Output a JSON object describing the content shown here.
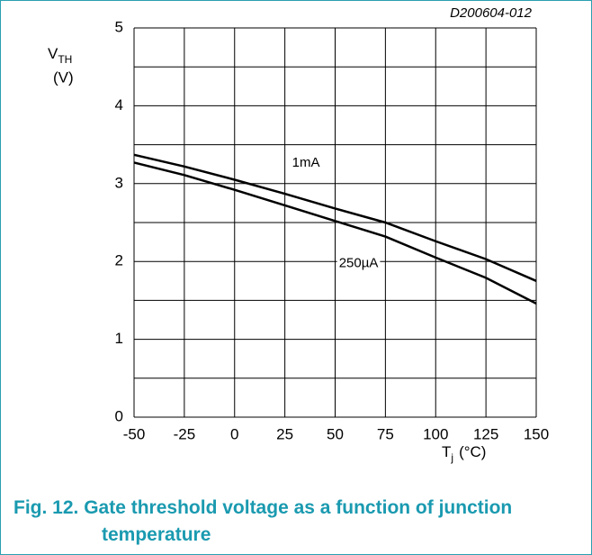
{
  "chart_data": {
    "type": "line",
    "note": "D200604-012",
    "y_label": {
      "main": "V",
      "sub": "TH",
      "unit": "(V)"
    },
    "x_label": {
      "main": "T",
      "sub": "j",
      "unit": "(°C)"
    },
    "x": [
      -50,
      -25,
      0,
      25,
      50,
      75,
      100,
      125,
      150
    ],
    "series": [
      {
        "name": "1mA",
        "color": "#000000",
        "values": [
          3.37,
          3.22,
          3.05,
          2.87,
          2.68,
          2.5,
          2.26,
          2.03,
          1.75
        ]
      },
      {
        "name": "250µA",
        "color": "#000000",
        "values": [
          3.27,
          3.11,
          2.92,
          2.72,
          2.52,
          2.32,
          2.05,
          1.79,
          1.46
        ]
      }
    ],
    "xlim": [
      -50,
      150
    ],
    "xticks": [
      -50,
      -25,
      0,
      25,
      50,
      75,
      100,
      125,
      150
    ],
    "ylim": [
      0,
      5
    ],
    "yticks": [
      0,
      1,
      2,
      3,
      4,
      5
    ],
    "y_minor_grid": [
      0.5,
      1.5,
      2.5,
      3.5,
      4.5
    ],
    "grid": true,
    "caption": {
      "number": "Fig. 12.",
      "text": "Gate threshold voltage as a function of junction temperature"
    }
  }
}
